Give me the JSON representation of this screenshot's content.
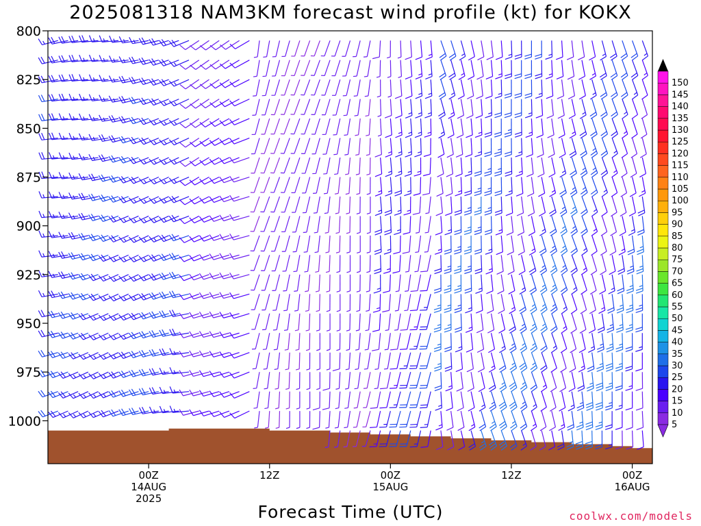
{
  "chart_data": {
    "type": "wind_barb_time_height",
    "title": "2025081318 NAM3KM forecast wind profile (kt) for KOKX",
    "xlabel": "Forecast Time (UTC)",
    "credit": "coolwx.com/models",
    "y_axis": {
      "quantity": "pressure (hPa)",
      "ticks": [
        800,
        825,
        850,
        875,
        900,
        925,
        950,
        975,
        1000
      ],
      "range": [
        800,
        1022
      ],
      "inverted": true
    },
    "x_axis": {
      "quantity": "forecast hour",
      "range": [
        -4,
        56
      ],
      "ticks": [
        {
          "hour": 6,
          "lines": [
            "00Z",
            "14AUG",
            "2025"
          ]
        },
        {
          "hour": 18,
          "lines": [
            "12Z"
          ]
        },
        {
          "hour": 30,
          "lines": [
            "00Z",
            "15AUG"
          ]
        },
        {
          "hour": 42,
          "lines": [
            "12Z"
          ]
        },
        {
          "hour": 54,
          "lines": [
            "00Z",
            "16AUG"
          ]
        }
      ]
    },
    "colorbar": {
      "labels": [
        5,
        10,
        15,
        20,
        25,
        30,
        35,
        40,
        45,
        50,
        55,
        60,
        65,
        70,
        75,
        80,
        85,
        90,
        95,
        100,
        105,
        110,
        115,
        120,
        125,
        130,
        135,
        140,
        145,
        150
      ],
      "colors": [
        "#8a2be2",
        "#6a1df0",
        "#4a00ff",
        "#2a14f0",
        "#1d46ec",
        "#1f6fe8",
        "#1e92e6",
        "#15b4e6",
        "#10d4d2",
        "#18e6a6",
        "#22e673",
        "#3de640",
        "#6ae62a",
        "#9ce62a",
        "#c8ee22",
        "#ecf414",
        "#ffe60a",
        "#ffcf0a",
        "#ffb00a",
        "#ff980a",
        "#ff8214",
        "#ff641e",
        "#ff4a1e",
        "#ff3020",
        "#ff1430",
        "#ff0a50",
        "#ff0a70",
        "#ff1496",
        "#ff14c0",
        "#ff14e8"
      ]
    },
    "terrain": {
      "color": "#a0522d",
      "surface_pressure": [
        {
          "hour": -4,
          "p": 1005
        },
        {
          "hour": 4,
          "p": 1005
        },
        {
          "hour": 8,
          "p": 1004
        },
        {
          "hour": 14,
          "p": 1004
        },
        {
          "hour": 18,
          "p": 1005
        },
        {
          "hour": 24,
          "p": 1006
        },
        {
          "hour": 28,
          "p": 1007
        },
        {
          "hour": 32,
          "p": 1008
        },
        {
          "hour": 36,
          "p": 1009
        },
        {
          "hour": 40,
          "p": 1010
        },
        {
          "hour": 44,
          "p": 1011
        },
        {
          "hour": 48,
          "p": 1012
        },
        {
          "hour": 52,
          "p": 1013
        },
        {
          "hour": 54,
          "p": 1014
        },
        {
          "hour": 56,
          "p": 1013
        }
      ]
    },
    "barbs": {
      "hours": [
        -3,
        -2,
        -1,
        0,
        1,
        2,
        3,
        4,
        5,
        6,
        7,
        8,
        9,
        10,
        11,
        12,
        13,
        14,
        15,
        16,
        17,
        18,
        19,
        20,
        21,
        22,
        23,
        24,
        25,
        26,
        27,
        28,
        29,
        30,
        31,
        32,
        33,
        34,
        35,
        36,
        37,
        38,
        39,
        40,
        41,
        42,
        43,
        44,
        45,
        46,
        47,
        48,
        49,
        50,
        51,
        52,
        53,
        54,
        55
      ],
      "levels": [
        805,
        815,
        825,
        835,
        845,
        855,
        865,
        875,
        885,
        895,
        905,
        915,
        925,
        935,
        945,
        955,
        965,
        975,
        985,
        995,
        1005,
        1015
      ],
      "regimes": [
        {
          "hours": [
            -3,
            10
          ],
          "dir_deg": 255,
          "speed_kt": [
            15,
            22
          ]
        },
        {
          "hours": [
            11,
            16
          ],
          "dir_deg": 245,
          "speed_kt": [
            8,
            12
          ]
        },
        {
          "hours": [
            17,
            28
          ],
          "dir_deg": 190,
          "speed_kt": [
            4,
            8
          ]
        },
        {
          "hours": [
            29,
            34
          ],
          "dir_deg": 185,
          "speed_kt": [
            6,
            22
          ]
        },
        {
          "hours": [
            35,
            55
          ],
          "dir_deg": 170,
          "speed_kt": [
            8,
            30
          ]
        }
      ]
    }
  }
}
